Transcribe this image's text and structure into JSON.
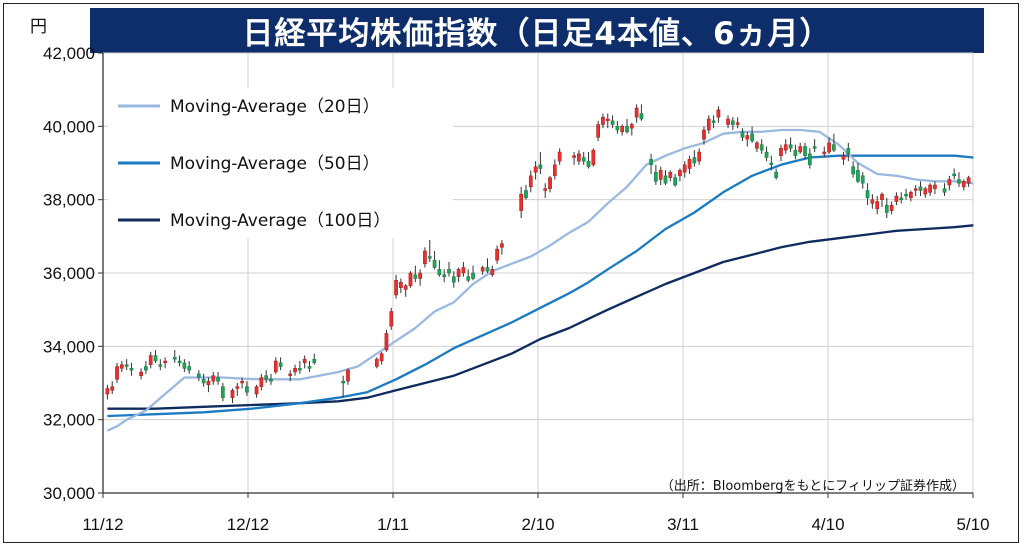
{
  "title": "日経平均株価指数（日足4本値、6ヵ月）",
  "source_note": "（出所：Bloombergをもとにフィリップ証券作成）",
  "chart_data": {
    "type": "candlestick",
    "ylabel": "円",
    "ylim": [
      30000,
      42000
    ],
    "yticks": [
      "30,000",
      "32,000",
      "34,000",
      "36,000",
      "38,000",
      "40,000",
      "42,000"
    ],
    "xticks": [
      "11/12",
      "12/12",
      "1/11",
      "2/10",
      "3/11",
      "4/10",
      "5/10"
    ],
    "grid": true,
    "legend_position": "top-left",
    "series": [
      {
        "name": "Moving-Average（20日）",
        "color": "#9bb9e0"
      },
      {
        "name": "Moving-Average（50日）",
        "color": "#1a7ac2"
      },
      {
        "name": "Moving-Average（100日）",
        "color": "#0f2b5e"
      }
    ],
    "ma20": [
      [
        0,
        31700
      ],
      [
        2,
        31820
      ],
      [
        4,
        32000
      ],
      [
        8,
        32250
      ],
      [
        12,
        32700
      ],
      [
        16,
        33150
      ],
      [
        20,
        33150
      ],
      [
        24,
        33150
      ],
      [
        28,
        33120
      ],
      [
        32,
        33100
      ],
      [
        36,
        33100
      ],
      [
        40,
        33100
      ],
      [
        44,
        33200
      ],
      [
        48,
        33300
      ],
      [
        52,
        33450
      ],
      [
        56,
        33800
      ],
      [
        60,
        34150
      ],
      [
        64,
        34500
      ],
      [
        68,
        34950
      ],
      [
        72,
        35200
      ],
      [
        76,
        35700
      ],
      [
        80,
        36050
      ],
      [
        84,
        36250
      ],
      [
        88,
        36450
      ],
      [
        92,
        36750
      ],
      [
        96,
        37100
      ],
      [
        100,
        37400
      ],
      [
        104,
        37900
      ],
      [
        108,
        38350
      ],
      [
        112,
        38950
      ],
      [
        116,
        39200
      ],
      [
        120,
        39400
      ],
      [
        124,
        39550
      ],
      [
        128,
        39800
      ],
      [
        132,
        39850
      ],
      [
        136,
        39850
      ],
      [
        140,
        39900
      ],
      [
        144,
        39900
      ],
      [
        148,
        39850
      ],
      [
        152,
        39500
      ],
      [
        156,
        39000
      ],
      [
        160,
        38700
      ],
      [
        164,
        38650
      ],
      [
        168,
        38550
      ],
      [
        172,
        38500
      ],
      [
        176,
        38500
      ],
      [
        180,
        38450
      ]
    ],
    "ma50": [
      [
        0,
        32100
      ],
      [
        10,
        32150
      ],
      [
        20,
        32200
      ],
      [
        30,
        32300
      ],
      [
        40,
        32450
      ],
      [
        48,
        32600
      ],
      [
        54,
        32750
      ],
      [
        60,
        33100
      ],
      [
        66,
        33500
      ],
      [
        72,
        33950
      ],
      [
        78,
        34300
      ],
      [
        84,
        34650
      ],
      [
        90,
        35050
      ],
      [
        96,
        35450
      ],
      [
        100,
        35750
      ],
      [
        104,
        36100
      ],
      [
        110,
        36600
      ],
      [
        116,
        37200
      ],
      [
        122,
        37650
      ],
      [
        128,
        38200
      ],
      [
        134,
        38650
      ],
      [
        140,
        38950
      ],
      [
        146,
        39150
      ],
      [
        152,
        39200
      ],
      [
        158,
        39200
      ],
      [
        164,
        39200
      ],
      [
        170,
        39200
      ],
      [
        176,
        39200
      ],
      [
        180,
        39150
      ]
    ],
    "ma100": [
      [
        0,
        32300
      ],
      [
        10,
        32300
      ],
      [
        20,
        32350
      ],
      [
        30,
        32400
      ],
      [
        40,
        32450
      ],
      [
        48,
        32500
      ],
      [
        54,
        32600
      ],
      [
        60,
        32800
      ],
      [
        66,
        33000
      ],
      [
        72,
        33200
      ],
      [
        78,
        33500
      ],
      [
        84,
        33800
      ],
      [
        90,
        34200
      ],
      [
        96,
        34500
      ],
      [
        100,
        34750
      ],
      [
        104,
        35000
      ],
      [
        110,
        35350
      ],
      [
        116,
        35700
      ],
      [
        122,
        36000
      ],
      [
        128,
        36300
      ],
      [
        134,
        36500
      ],
      [
        140,
        36700
      ],
      [
        146,
        36850
      ],
      [
        152,
        36950
      ],
      [
        158,
        37050
      ],
      [
        164,
        37150
      ],
      [
        170,
        37200
      ],
      [
        176,
        37250
      ],
      [
        180,
        37300
      ]
    ],
    "candles": [
      [
        0,
        32700,
        32950,
        32550,
        32850
      ],
      [
        1,
        32800,
        33050,
        32700,
        32900
      ],
      [
        2,
        33100,
        33550,
        33000,
        33450
      ],
      [
        3,
        33400,
        33600,
        33300,
        33500
      ],
      [
        4,
        33500,
        33650,
        33350,
        33450
      ],
      [
        5,
        33400,
        33550,
        33200,
        33350
      ],
      [
        7,
        33200,
        33400,
        33100,
        33300
      ],
      [
        8,
        33450,
        33600,
        33250,
        33350
      ],
      [
        9,
        33500,
        33850,
        33400,
        33750
      ],
      [
        10,
        33750,
        33900,
        33550,
        33600
      ],
      [
        11,
        33500,
        33650,
        33350,
        33450
      ],
      [
        12,
        33550,
        33700,
        33400,
        33600
      ],
      [
        14,
        33700,
        33900,
        33550,
        33650
      ],
      [
        15,
        33600,
        33750,
        33450,
        33550
      ],
      [
        16,
        33550,
        33650,
        33300,
        33400
      ],
      [
        17,
        33450,
        33600,
        33250,
        33350
      ],
      [
        19,
        33250,
        33350,
        33050,
        33150
      ],
      [
        20,
        33100,
        33250,
        32900,
        33000
      ],
      [
        21,
        32950,
        33150,
        32750,
        33050
      ],
      [
        22,
        33050,
        33300,
        32950,
        33200
      ],
      [
        23,
        33150,
        33300,
        32950,
        33050
      ],
      [
        24,
        32900,
        33000,
        32500,
        32600
      ],
      [
        26,
        32600,
        32850,
        32450,
        32800
      ],
      [
        27,
        32850,
        33000,
        32650,
        32900
      ],
      [
        28,
        33000,
        33150,
        32850,
        33050
      ],
      [
        29,
        32900,
        33050,
        32650,
        32750
      ],
      [
        31,
        32700,
        32950,
        32600,
        32900
      ],
      [
        32,
        32900,
        33250,
        32800,
        33150
      ],
      [
        33,
        33200,
        33350,
        33000,
        33100
      ],
      [
        34,
        33100,
        33250,
        32950,
        33050
      ],
      [
        35,
        33300,
        33700,
        33250,
        33600
      ],
      [
        36,
        33550,
        33700,
        33350,
        33450
      ],
      [
        38,
        33200,
        33350,
        33050,
        33250
      ],
      [
        39,
        33300,
        33500,
        33200,
        33400
      ],
      [
        40,
        33400,
        33600,
        33250,
        33350
      ],
      [
        41,
        33550,
        33750,
        33400,
        33650
      ],
      [
        42,
        33450,
        33600,
        33300,
        33400
      ],
      [
        43,
        33650,
        33800,
        33500,
        33550
      ],
      [
        49,
        33050,
        33200,
        32600,
        33000
      ],
      [
        50,
        33050,
        33400,
        32950,
        33350
      ],
      [
        56,
        33450,
        33700,
        33400,
        33650
      ],
      [
        57,
        33600,
        33850,
        33500,
        33800
      ],
      [
        58,
        33900,
        34450,
        33850,
        34350
      ],
      [
        59,
        34550,
        35050,
        34450,
        34950
      ],
      [
        60,
        35400,
        35950,
        35300,
        35800
      ],
      [
        61,
        35600,
        35850,
        35450,
        35750
      ],
      [
        62,
        35550,
        35700,
        35350,
        35650
      ],
      [
        63,
        35650,
        36050,
        35600,
        36000
      ],
      [
        64,
        35950,
        36200,
        35750,
        35850
      ],
      [
        65,
        35850,
        36100,
        35650,
        36000
      ],
      [
        66,
        36250,
        36700,
        36150,
        36600
      ],
      [
        67,
        36450,
        36900,
        36300,
        36400
      ],
      [
        68,
        36350,
        36600,
        36100,
        36150
      ],
      [
        69,
        36100,
        36350,
        35900,
        35950
      ],
      [
        70,
        35950,
        36100,
        35750,
        35900
      ],
      [
        71,
        36100,
        36300,
        35900,
        36000
      ],
      [
        72,
        35900,
        36050,
        35600,
        35750
      ],
      [
        73,
        35900,
        36150,
        35750,
        36100
      ],
      [
        74,
        36000,
        36300,
        35900,
        36150
      ],
      [
        75,
        35900,
        36100,
        35750,
        35800
      ],
      [
        76,
        36000,
        36200,
        35800,
        35850
      ],
      [
        78,
        36050,
        36200,
        35950,
        36150
      ],
      [
        79,
        36150,
        36400,
        36000,
        36050
      ],
      [
        80,
        35950,
        36200,
        35900,
        36100
      ],
      [
        81,
        36350,
        36750,
        36250,
        36650
      ],
      [
        82,
        36700,
        36900,
        36500,
        36800
      ],
      [
        86,
        37700,
        38350,
        37500,
        38150
      ],
      [
        87,
        38250,
        38400,
        38000,
        38050
      ],
      [
        88,
        38350,
        38800,
        38200,
        38650
      ],
      [
        89,
        38750,
        39050,
        38550,
        38900
      ],
      [
        90,
        38950,
        39300,
        38700,
        38850
      ],
      [
        91,
        38250,
        38450,
        38050,
        38300
      ],
      [
        92,
        38300,
        38650,
        38200,
        38600
      ],
      [
        93,
        38650,
        39100,
        38550,
        38950
      ],
      [
        94,
        39050,
        39400,
        38950,
        39300
      ],
      [
        97,
        39150,
        39300,
        38950,
        39200
      ],
      [
        98,
        39050,
        39350,
        38950,
        39250
      ],
      [
        99,
        39150,
        39300,
        38950,
        39050
      ],
      [
        100,
        39050,
        39300,
        38850,
        38900
      ],
      [
        101,
        38950,
        39400,
        38900,
        39350
      ],
      [
        102,
        39700,
        40150,
        39600,
        40050
      ],
      [
        103,
        40050,
        40350,
        39950,
        40250
      ],
      [
        104,
        40150,
        40350,
        39950,
        40200
      ],
      [
        105,
        40150,
        40300,
        39950,
        40050
      ],
      [
        106,
        40000,
        40150,
        39800,
        39900
      ],
      [
        107,
        39850,
        40050,
        39750,
        40000
      ],
      [
        108,
        40000,
        40200,
        39800,
        39850
      ],
      [
        109,
        39950,
        40100,
        39750,
        40050
      ],
      [
        110,
        40250,
        40600,
        40100,
        40500
      ],
      [
        111,
        40350,
        40600,
        40150,
        40200
      ],
      [
        113,
        39100,
        39250,
        38700,
        38950
      ],
      [
        114,
        38750,
        38950,
        38400,
        38500
      ],
      [
        115,
        38550,
        38900,
        38400,
        38800
      ],
      [
        116,
        38650,
        38800,
        38400,
        38450
      ],
      [
        117,
        38600,
        38800,
        38500,
        38750
      ],
      [
        118,
        38600,
        38700,
        38350,
        38400
      ],
      [
        119,
        38650,
        38850,
        38500,
        38800
      ],
      [
        120,
        38750,
        39050,
        38600,
        38950
      ],
      [
        121,
        38850,
        39200,
        38700,
        39100
      ],
      [
        122,
        39150,
        39350,
        38900,
        39000
      ],
      [
        123,
        39050,
        39400,
        38950,
        39300
      ],
      [
        124,
        39650,
        40000,
        39500,
        39900
      ],
      [
        125,
        39900,
        40300,
        39800,
        40200
      ],
      [
        126,
        40150,
        40300,
        39950,
        40100
      ],
      [
        127,
        40250,
        40550,
        40100,
        40450
      ],
      [
        129,
        40050,
        40300,
        39950,
        40200
      ],
      [
        130,
        40150,
        40250,
        39900,
        40050
      ],
      [
        131,
        40050,
        40250,
        39950,
        40100
      ],
      [
        132,
        39850,
        39950,
        39600,
        39700
      ],
      [
        133,
        39650,
        39850,
        39450,
        39750
      ],
      [
        134,
        39800,
        40000,
        39550,
        39600
      ],
      [
        135,
        39400,
        39600,
        39300,
        39550
      ],
      [
        136,
        39500,
        39650,
        39250,
        39350
      ],
      [
        137,
        39300,
        39450,
        39050,
        39150
      ],
      [
        138,
        39000,
        39200,
        38800,
        38950
      ],
      [
        139,
        38750,
        38850,
        38550,
        38600
      ],
      [
        140,
        39200,
        39500,
        39050,
        39400
      ],
      [
        141,
        39350,
        39650,
        39250,
        39500
      ],
      [
        142,
        39500,
        39700,
        39300,
        39400
      ],
      [
        143,
        39350,
        39500,
        39100,
        39200
      ],
      [
        144,
        39300,
        39550,
        39250,
        39450
      ],
      [
        145,
        39450,
        39550,
        39100,
        39200
      ],
      [
        146,
        39250,
        39400,
        38850,
        38950
      ],
      [
        147,
        39450,
        39650,
        39300,
        39400
      ],
      [
        149,
        39250,
        39450,
        39150,
        39300
      ],
      [
        150,
        39300,
        39700,
        39250,
        39550
      ],
      [
        151,
        39500,
        39800,
        39300,
        39350
      ],
      [
        153,
        39100,
        39300,
        38950,
        39200
      ],
      [
        154,
        39400,
        39550,
        39050,
        39250
      ],
      [
        155,
        38900,
        39050,
        38600,
        38700
      ],
      [
        156,
        38800,
        39000,
        38450,
        38500
      ],
      [
        157,
        38650,
        38750,
        38300,
        38450
      ],
      [
        158,
        38250,
        38450,
        37850,
        38050
      ],
      [
        159,
        37900,
        38150,
        37750,
        38000
      ],
      [
        160,
        37750,
        38100,
        37600,
        37950
      ],
      [
        161,
        38000,
        38200,
        37800,
        38150
      ],
      [
        162,
        37850,
        38050,
        37500,
        37650
      ],
      [
        163,
        37700,
        37950,
        37600,
        37850
      ],
      [
        164,
        37950,
        38200,
        37850,
        38100
      ],
      [
        165,
        38050,
        38200,
        37900,
        38000
      ],
      [
        166,
        38150,
        38300,
        38000,
        38100
      ],
      [
        167,
        38050,
        38250,
        37950,
        38200
      ],
      [
        168,
        38250,
        38400,
        38100,
        38300
      ],
      [
        169,
        38350,
        38500,
        38100,
        38250
      ],
      [
        170,
        38150,
        38350,
        38050,
        38300
      ],
      [
        171,
        38200,
        38450,
        38100,
        38400
      ],
      [
        172,
        38300,
        38500,
        38150,
        38400
      ],
      [
        174,
        38300,
        38450,
        38100,
        38200
      ],
      [
        175,
        38400,
        38650,
        38250,
        38550
      ],
      [
        176,
        38700,
        38850,
        38550,
        38650
      ],
      [
        177,
        38550,
        38750,
        38350,
        38450
      ],
      [
        178,
        38350,
        38550,
        38250,
        38500
      ],
      [
        179,
        38450,
        38650,
        38350,
        38600
      ]
    ]
  }
}
